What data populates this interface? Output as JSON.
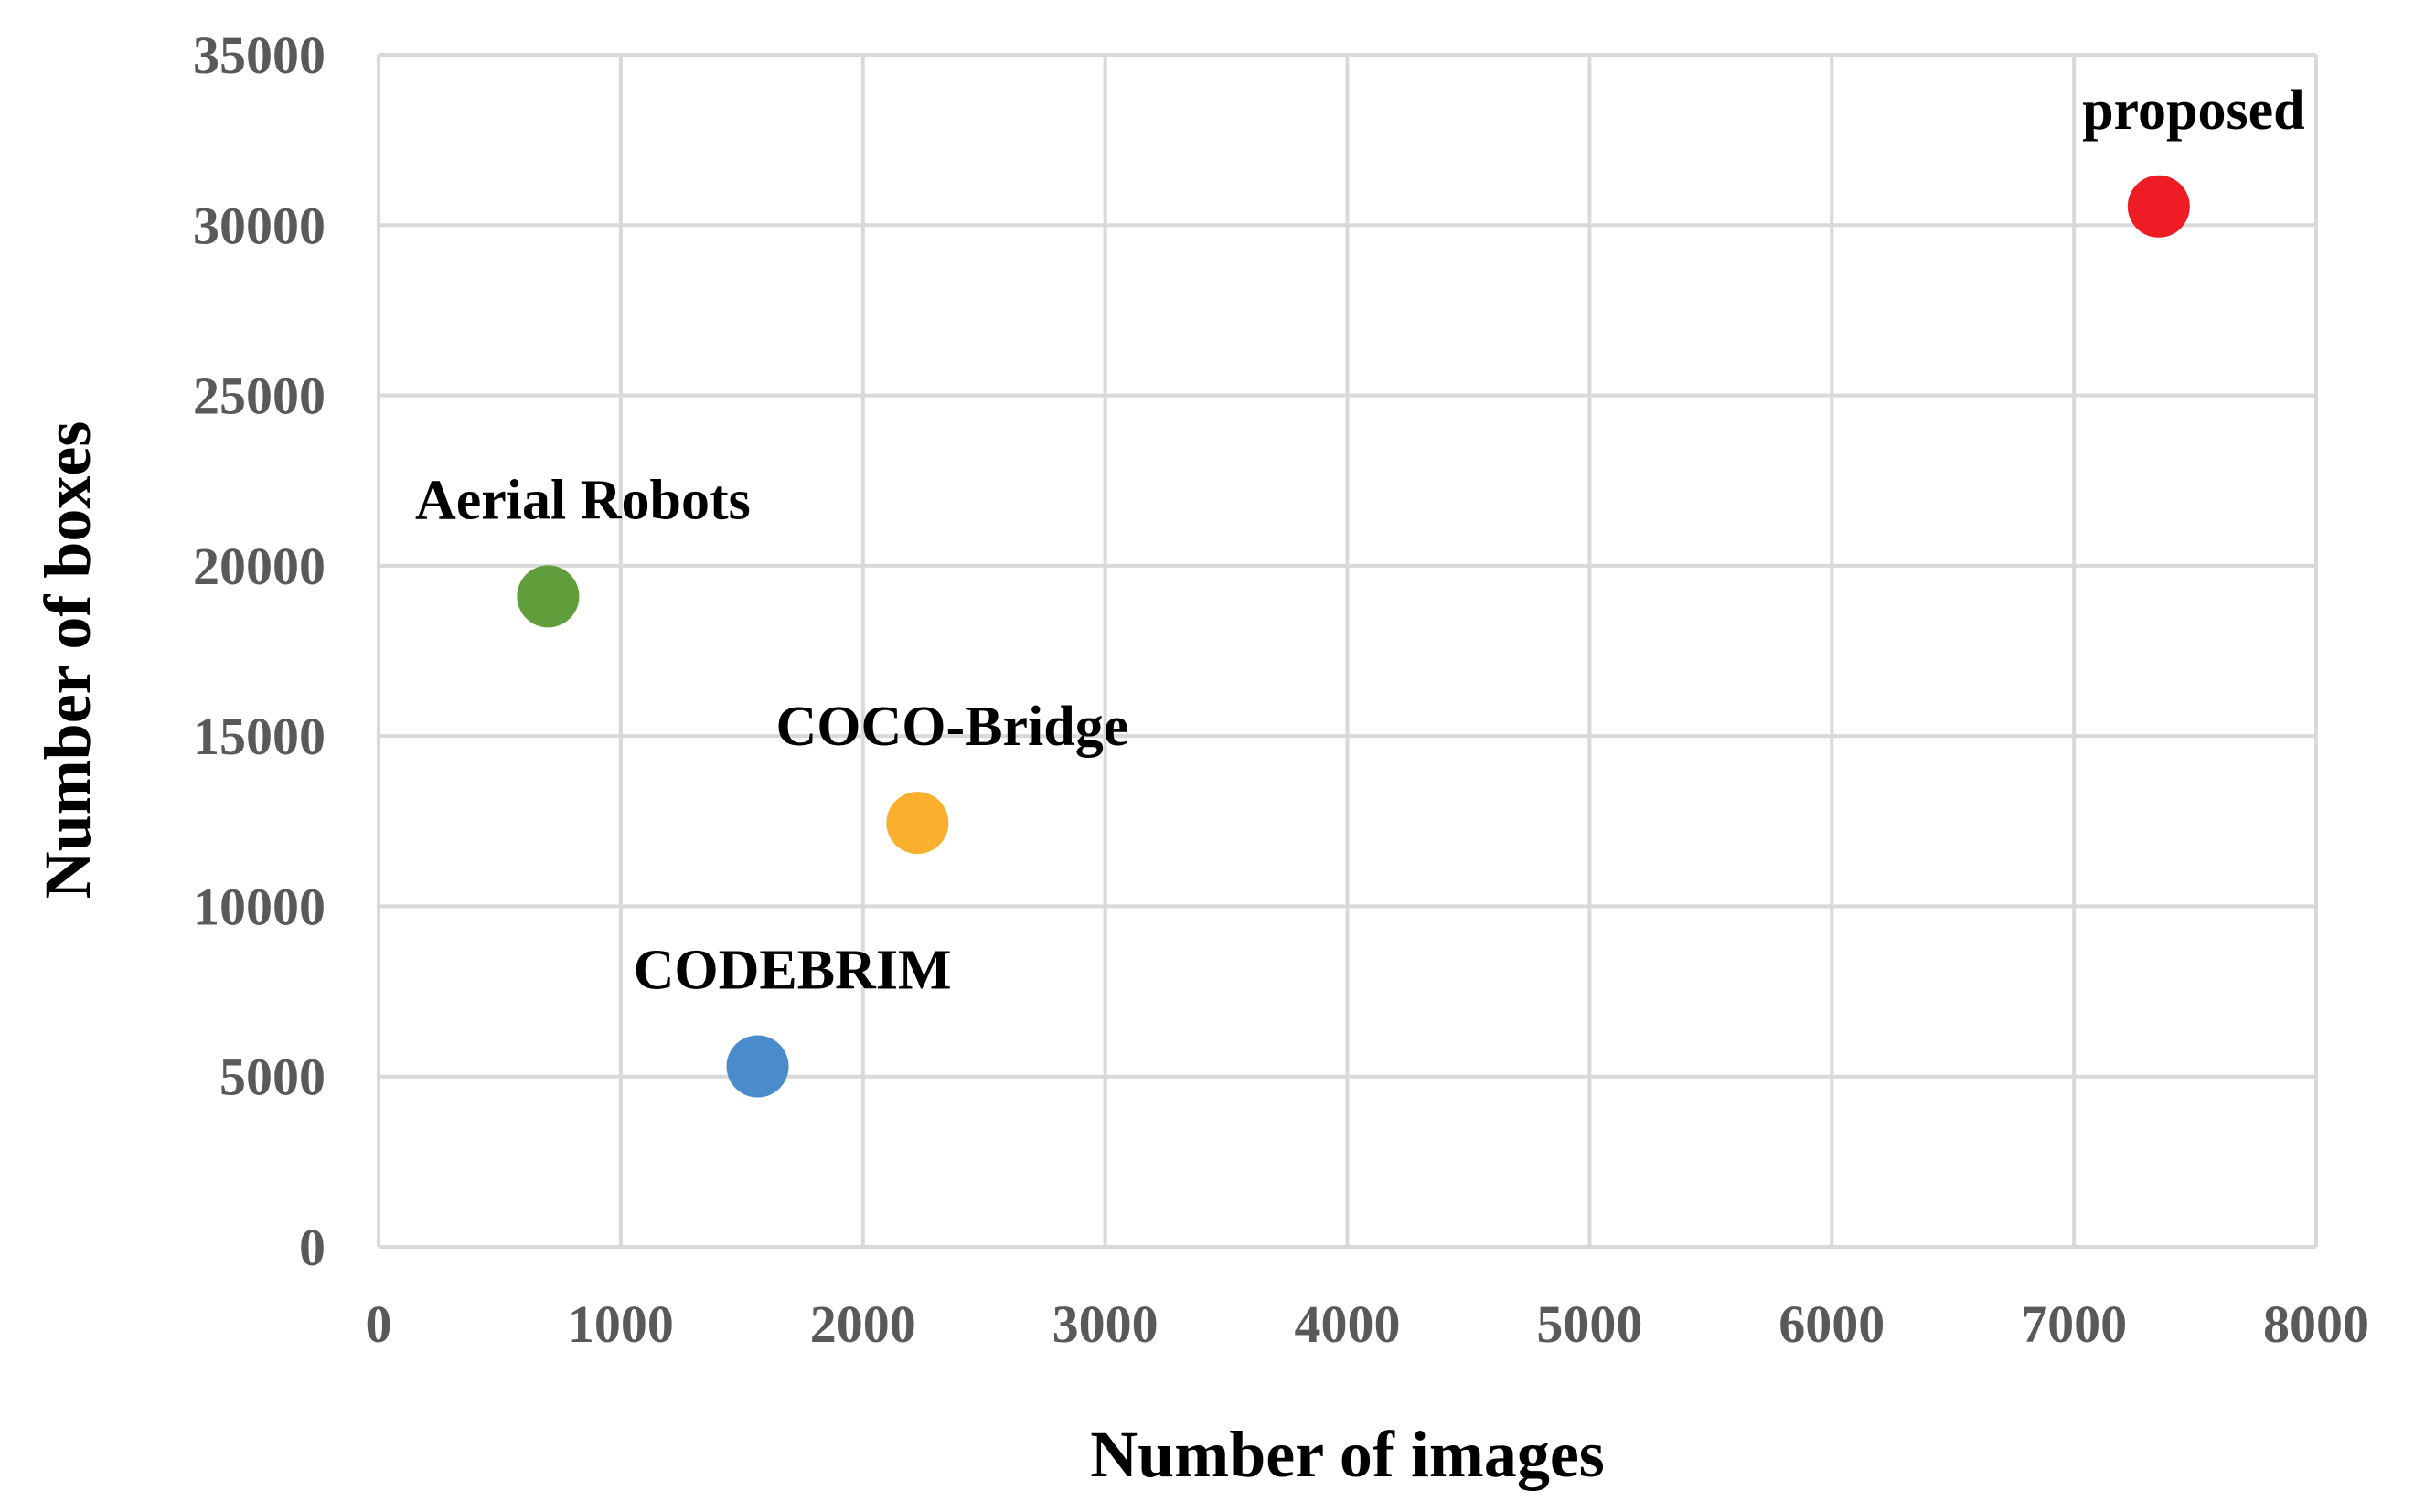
{
  "chart_data": {
    "type": "scatter",
    "title": "",
    "xlabel": "Number of images",
    "ylabel": "Number of boxes",
    "xlim": [
      0,
      8000
    ],
    "ylim": [
      0,
      35000
    ],
    "xticks": [
      0,
      1000,
      2000,
      3000,
      4000,
      5000,
      6000,
      7000,
      8000
    ],
    "yticks": [
      0,
      5000,
      10000,
      15000,
      20000,
      25000,
      30000,
      35000
    ],
    "grid": true,
    "legend": "none",
    "points": [
      {
        "label": "Aerial Robots",
        "x": 700,
        "y": 19100,
        "color": "#5f9e3a"
      },
      {
        "label": "COCO-Bridge",
        "x": 2225,
        "y": 12450,
        "color": "#fbb02d"
      },
      {
        "label": "CODEBRIM",
        "x": 1565,
        "y": 5300,
        "color": "#4a8ccb"
      },
      {
        "label": "proposed",
        "x": 7350,
        "y": 30550,
        "color": "#ee1c25"
      }
    ]
  }
}
